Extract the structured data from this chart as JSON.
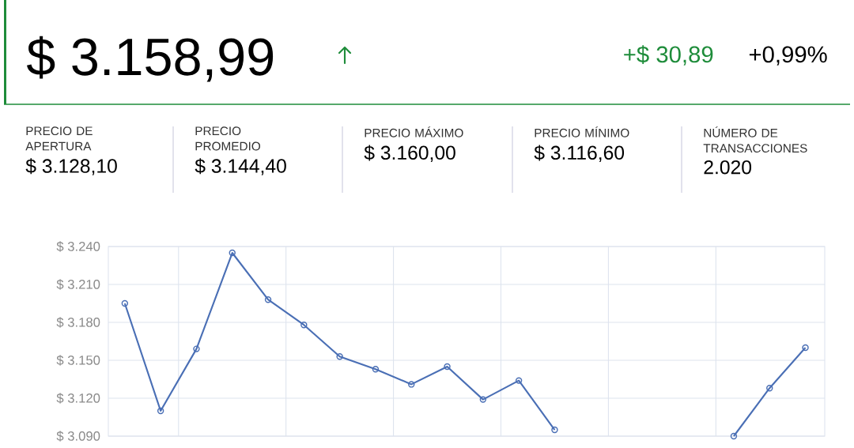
{
  "chart_data": {
    "type": "line",
    "title": "$ 3.158,99",
    "annotations": [
      "+$ 30,89",
      "+0,99%",
      "PRECIO DE APERTURA",
      "$ 3.128,10",
      "PRECIO PROMEDIO",
      "$ 3.144,40",
      "PRECIO MÁXIMO",
      "$ 3.160,00",
      "PRECIO MÍNIMO",
      "$ 3.116,60",
      "NÚMERO DE TRANSACCIONES",
      "2.020"
    ],
    "categories": [
      null,
      null,
      null,
      null,
      null,
      null,
      null,
      null,
      null,
      null,
      null,
      null,
      null,
      null,
      null,
      null,
      null,
      null,
      null,
      null
    ],
    "series": [
      {
        "color": "#4a6fb5",
        "values": [
          3195,
          3110,
          3159,
          3235,
          3198,
          3178,
          3153,
          3143,
          3131,
          3145,
          3119,
          3134,
          3095,
          null,
          null,
          null,
          null,
          null,
          null,
          null
        ]
      },
      {
        "color": "#4a6fb5",
        "values": [
          null,
          null,
          null,
          null,
          null,
          null,
          null,
          null,
          null,
          null,
          null,
          null,
          null,
          null,
          null,
          null,
          null,
          3090,
          3128,
          3160
        ]
      }
    ],
    "ylim": [
      3090,
      3240
    ],
    "yticks": [
      {
        "value": 3090,
        "label": "$ 3.090"
      },
      {
        "value": 3120,
        "label": "$ 3.120"
      },
      {
        "value": 3150,
        "label": "$ 3.150"
      },
      {
        "value": 3180,
        "label": "$ 3.180"
      },
      {
        "value": 3210,
        "label": "$ 3.210"
      },
      {
        "value": 3240,
        "label": "$ 3.240"
      }
    ],
    "grid": true,
    "marker": "circle",
    "line_style": "solid"
  }
}
